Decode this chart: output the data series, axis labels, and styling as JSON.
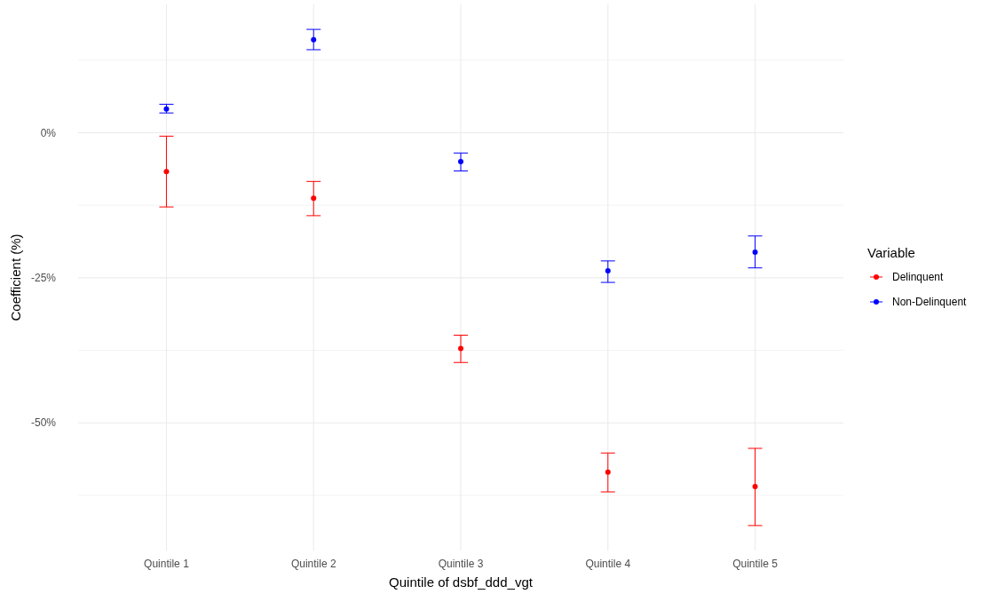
{
  "chart_data": {
    "type": "scatter",
    "xlabel": "Quintile of dsbf_ddd_vgt",
    "ylabel": "Coefficient (%)",
    "legend_title": "Variable",
    "categories": [
      "Quintile 1",
      "Quintile 2",
      "Quintile 3",
      "Quintile 4",
      "Quintile 5"
    ],
    "series": [
      {
        "name": "Delinquent",
        "color": "#ff0000",
        "values": [
          -6.7,
          -11.3,
          -37.2,
          -58.5,
          -61.0
        ],
        "errors": [
          [
            -12.8,
            -0.6
          ],
          [
            -14.3,
            -8.4
          ],
          [
            -39.6,
            -34.9
          ],
          [
            -61.9,
            -55.2
          ],
          [
            -67.7,
            -54.4
          ]
        ]
      },
      {
        "name": "Non-Delinquent",
        "color": "#0000ff",
        "values": [
          4.1,
          16.0,
          -5.0,
          -23.8,
          -20.6
        ],
        "errors": [
          [
            3.4,
            4.9
          ],
          [
            14.3,
            17.8
          ],
          [
            -6.6,
            -3.5
          ],
          [
            -25.8,
            -22.1
          ],
          [
            -23.3,
            -17.8
          ]
        ]
      }
    ],
    "ylim": [
      -72,
      22.1
    ],
    "yticks": [
      {
        "value": -62.5,
        "label": null
      },
      {
        "value": -50,
        "label": "-50%"
      },
      {
        "value": -37.5,
        "label": null
      },
      {
        "value": -25,
        "label": "-25%"
      },
      {
        "value": -12.5,
        "label": null
      },
      {
        "value": 0,
        "label": "0%"
      },
      {
        "value": 12.5,
        "label": null
      }
    ],
    "grid": true,
    "legend": "right",
    "marker": "circle"
  }
}
